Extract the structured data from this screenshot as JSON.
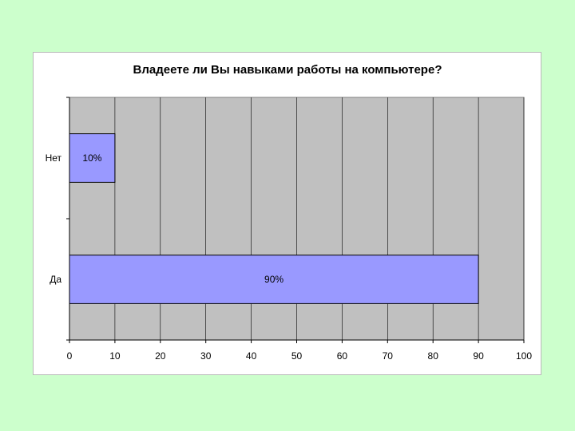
{
  "chart_data": {
    "type": "bar",
    "orientation": "horizontal",
    "title": "Владеете ли Вы навыками работы на компьютере?",
    "categories": [
      "Нет",
      "Да"
    ],
    "values": [
      10,
      90
    ],
    "data_labels": [
      "10%",
      "90%"
    ],
    "xlabel": "",
    "ylabel": "",
    "xlim": [
      0,
      100
    ],
    "x_ticks": [
      0,
      10,
      20,
      30,
      40,
      50,
      60,
      70,
      80,
      90,
      100
    ],
    "grid": true,
    "legend": "none",
    "colors": {
      "bar_fill": "#9999ff",
      "bar_stroke": "#000000",
      "plot_background": "#c0c0c0",
      "gridline": "#000000",
      "page_background": "#ccffcc",
      "frame_background": "#ffffff"
    }
  }
}
